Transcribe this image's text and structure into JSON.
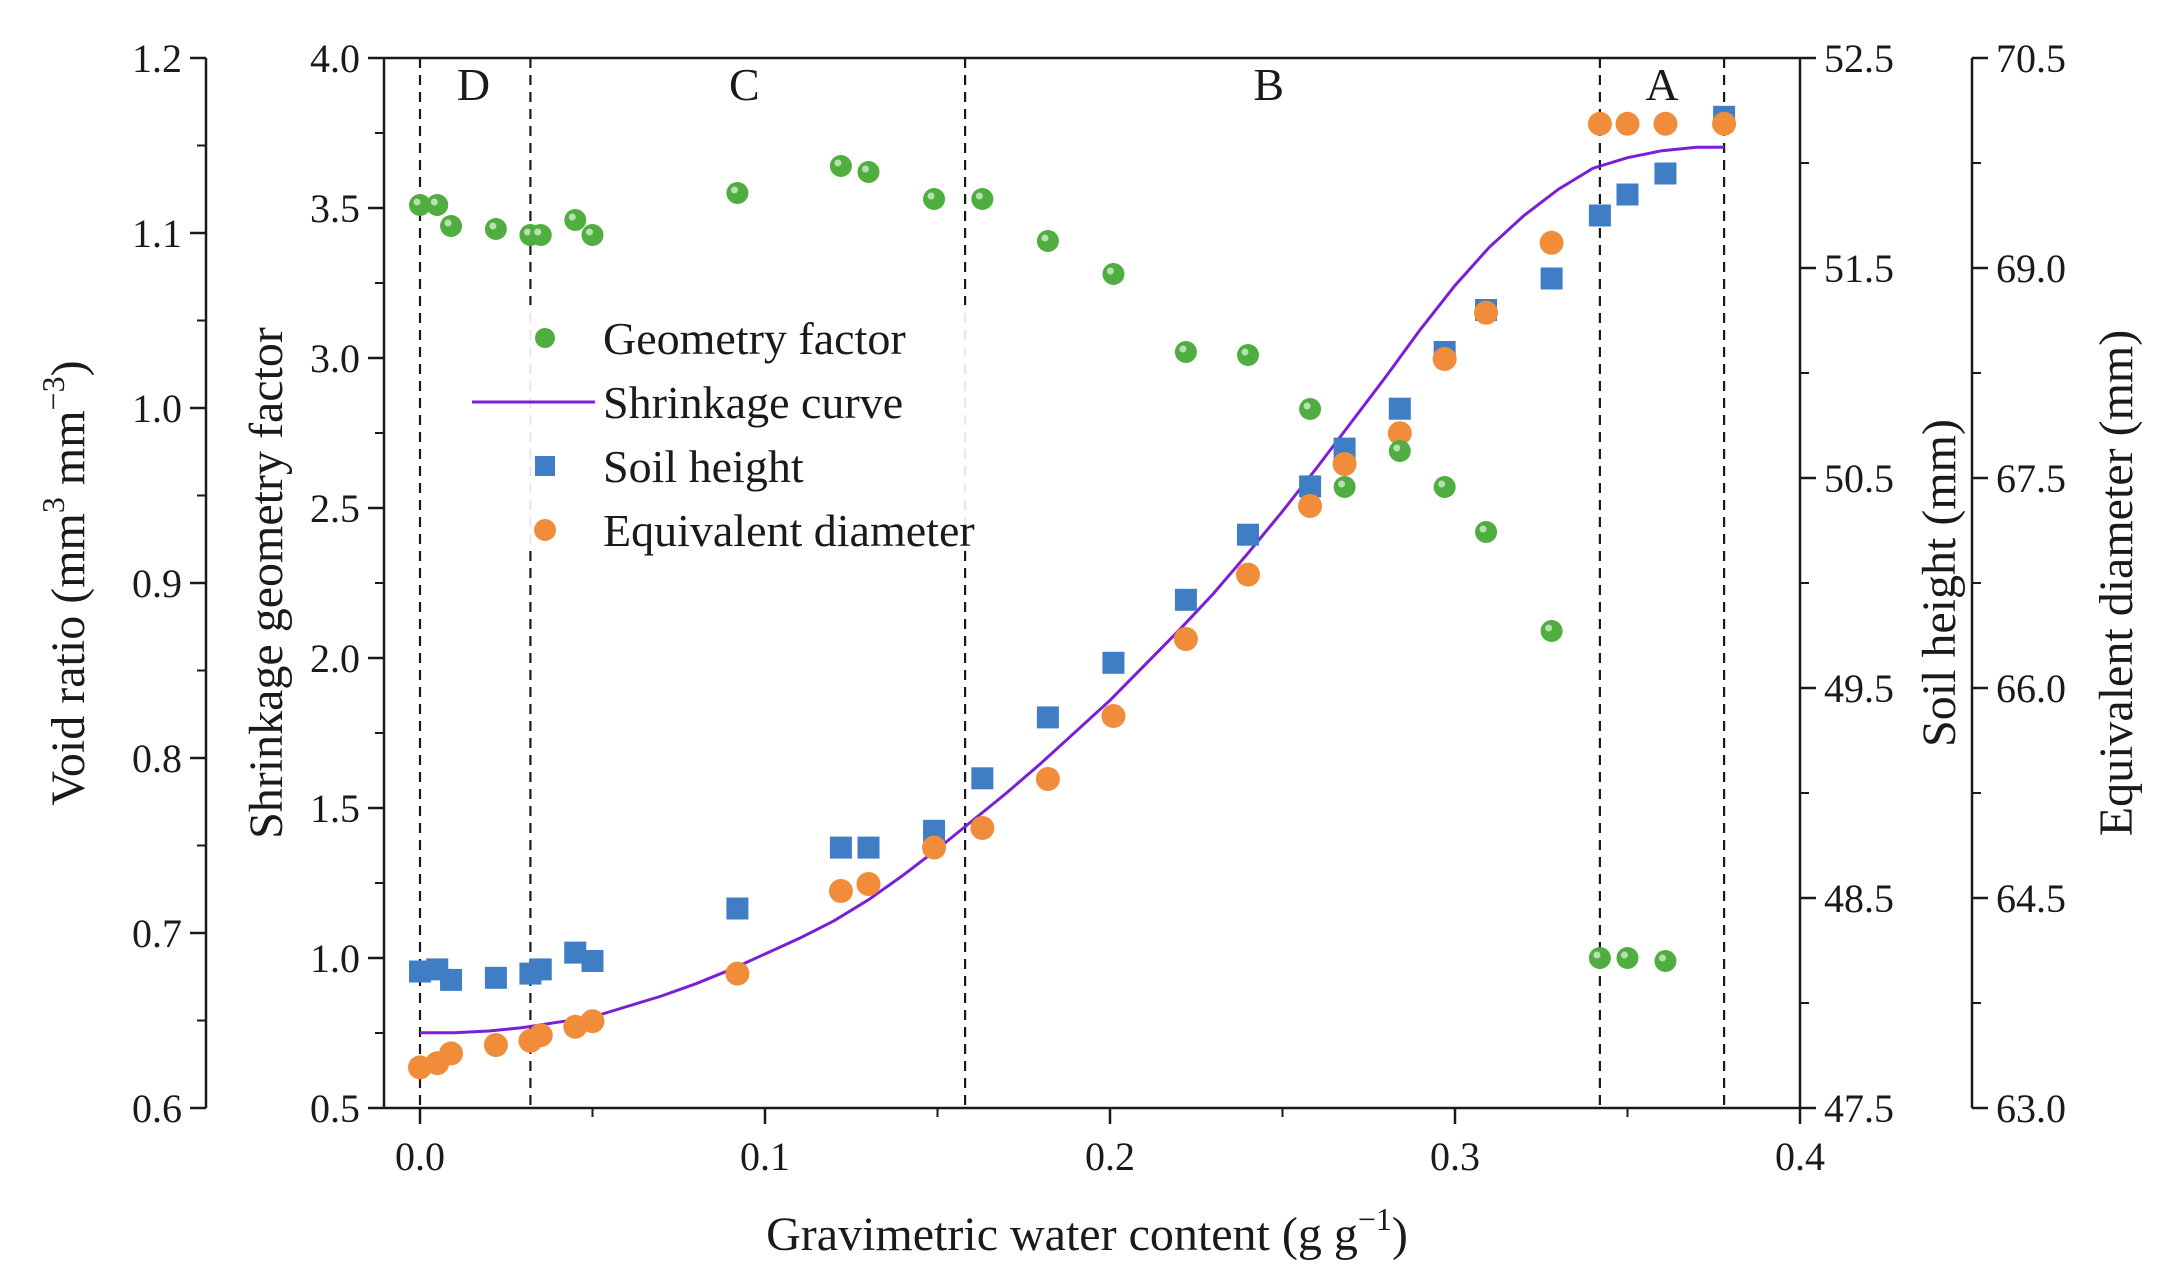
{
  "chart_data": {
    "type": "scatter",
    "xlabel": "Gravimetric water content (g g",
    "xlabel_sup": "−1",
    "xlabel_end": ")",
    "xlim": [
      0,
      0.4
    ],
    "xticks": [
      0.0,
      0.1,
      0.2,
      0.3,
      0.4
    ],
    "xtick_labels": [
      "0.0",
      "0.1",
      "0.2",
      "0.3",
      "0.4"
    ],
    "axes": {
      "void_ratio": {
        "label": "Void ratio (mm",
        "label_sup1": "3",
        "label_mid": " mm",
        "label_sup2": "−3",
        "label_end": ")",
        "ylim": [
          0.6,
          1.2
        ],
        "ticks": [
          0.6,
          0.7,
          0.8,
          0.9,
          1.0,
          1.1,
          1.2
        ],
        "tick_labels": [
          "0.6",
          "0.7",
          "0.8",
          "0.9",
          "1.0",
          "1.1",
          "1.2"
        ]
      },
      "geometry": {
        "label": "Shrinkage geometry factor",
        "ylim": [
          0.5,
          4.0
        ],
        "ticks": [
          0.5,
          1.0,
          1.5,
          2.0,
          2.5,
          3.0,
          3.5,
          4.0
        ],
        "tick_labels": [
          "0.5",
          "1.0",
          "1.5",
          "2.0",
          "2.5",
          "3.0",
          "3.5",
          "4.0"
        ]
      },
      "soil_height": {
        "label": "Soil height (mm)",
        "ylim": [
          47.5,
          52.5
        ],
        "ticks": [
          47.5,
          48.5,
          49.5,
          50.5,
          51.5,
          52.5
        ],
        "tick_labels": [
          "47.5",
          "48.5",
          "49.5",
          "50.5",
          "51.5",
          "52.5"
        ]
      },
      "equiv_diameter": {
        "label": "Equivalent diameter (mm)",
        "ylim": [
          63.0,
          70.5
        ],
        "ticks": [
          63.0,
          64.5,
          66.0,
          67.5,
          69.0,
          70.5
        ],
        "tick_labels": [
          "63.0",
          "64.5",
          "66.0",
          "67.5",
          "69.0",
          "70.5"
        ]
      }
    },
    "regions": {
      "boundaries": [
        0.0,
        0.032,
        0.158,
        0.342,
        0.378
      ],
      "labels": [
        {
          "text": "D",
          "x": 0.0155
        },
        {
          "text": "C",
          "x": 0.094
        },
        {
          "text": "B",
          "x": 0.246
        },
        {
          "text": "A",
          "x": 0.36
        }
      ]
    },
    "series": [
      {
        "name": "Geometry factor",
        "marker": "circle",
        "color": "#4fae3f",
        "axis": "geometry",
        "x": [
          0.0,
          0.005,
          0.009,
          0.022,
          0.032,
          0.035,
          0.045,
          0.05,
          0.092,
          0.122,
          0.13,
          0.149,
          0.163,
          0.182,
          0.201,
          0.222,
          0.24,
          0.258,
          0.268,
          0.284,
          0.297,
          0.309,
          0.328,
          0.342,
          0.35,
          0.361
        ],
        "y": [
          3.51,
          3.51,
          3.44,
          3.43,
          3.41,
          3.41,
          3.46,
          3.41,
          3.55,
          3.64,
          3.62,
          3.53,
          3.53,
          3.39,
          3.28,
          3.02,
          3.01,
          2.83,
          2.57,
          2.69,
          2.57,
          2.42,
          2.09,
          1.0,
          1.0,
          0.99
        ]
      },
      {
        "name": "Shrinkage curve",
        "marker": "line",
        "color": "#7b1fd6",
        "axis": "void_ratio",
        "x": [
          0.0,
          0.01,
          0.02,
          0.03,
          0.04,
          0.05,
          0.06,
          0.07,
          0.08,
          0.09,
          0.1,
          0.11,
          0.12,
          0.13,
          0.14,
          0.15,
          0.16,
          0.17,
          0.18,
          0.19,
          0.2,
          0.21,
          0.22,
          0.23,
          0.24,
          0.25,
          0.26,
          0.27,
          0.28,
          0.29,
          0.3,
          0.31,
          0.32,
          0.33,
          0.34,
          0.35,
          0.36,
          0.37,
          0.378
        ],
        "y": [
          0.643,
          0.643,
          0.644,
          0.646,
          0.649,
          0.652,
          0.658,
          0.664,
          0.671,
          0.679,
          0.688,
          0.697,
          0.707,
          0.719,
          0.733,
          0.748,
          0.764,
          0.78,
          0.797,
          0.815,
          0.833,
          0.853,
          0.873,
          0.894,
          0.917,
          0.941,
          0.966,
          0.992,
          1.018,
          1.045,
          1.07,
          1.092,
          1.11,
          1.125,
          1.137,
          1.143,
          1.147,
          1.149,
          1.149
        ]
      },
      {
        "name": "Soil height",
        "marker": "square",
        "color": "#3f7ec4",
        "axis": "soil_height",
        "x": [
          0.0,
          0.005,
          0.009,
          0.022,
          0.032,
          0.035,
          0.045,
          0.05,
          0.092,
          0.122,
          0.13,
          0.149,
          0.163,
          0.182,
          0.201,
          0.222,
          0.24,
          0.258,
          0.268,
          0.284,
          0.297,
          0.309,
          0.328,
          0.342,
          0.35,
          0.361,
          0.378
        ],
        "y": [
          48.15,
          48.16,
          48.11,
          48.12,
          48.14,
          48.16,
          48.24,
          48.2,
          48.45,
          48.74,
          48.74,
          48.82,
          49.07,
          49.36,
          49.62,
          49.92,
          50.23,
          50.46,
          50.64,
          50.83,
          51.1,
          51.3,
          51.45,
          51.75,
          51.85,
          51.95,
          52.22
        ]
      },
      {
        "name": "Equivalent diameter",
        "marker": "circle",
        "color": "#f08c3a",
        "axis": "equiv_diameter",
        "x": [
          0.0,
          0.005,
          0.009,
          0.022,
          0.032,
          0.035,
          0.045,
          0.05,
          0.092,
          0.122,
          0.13,
          0.149,
          0.163,
          0.182,
          0.201,
          0.222,
          0.24,
          0.258,
          0.268,
          0.284,
          0.297,
          0.309,
          0.328,
          0.342,
          0.35,
          0.361,
          0.378
        ],
        "y": [
          63.29,
          63.32,
          63.39,
          63.45,
          63.48,
          63.52,
          63.58,
          63.62,
          63.96,
          64.55,
          64.6,
          64.86,
          65.0,
          65.35,
          65.8,
          66.35,
          66.81,
          67.3,
          67.6,
          67.82,
          68.35,
          68.68,
          69.18,
          70.03,
          70.03,
          70.03,
          70.03
        ]
      }
    ],
    "legend": {
      "position": "center-left",
      "entries": [
        "Geometry factor",
        "Shrinkage curve",
        "Soil height",
        "Equivalent diameter"
      ]
    }
  }
}
